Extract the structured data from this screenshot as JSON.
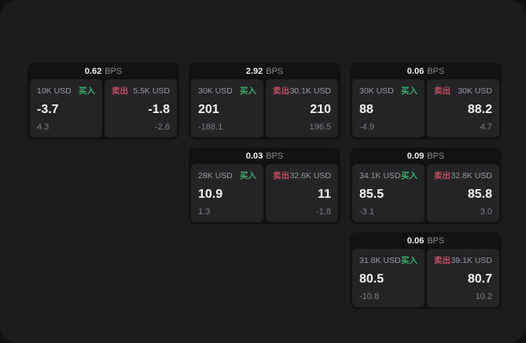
{
  "colors": {
    "buy_green": "#3aad6c",
    "sell_red": "#c24e61",
    "panel_bg": "#242427",
    "card_bg": "#121214",
    "window_bg": "#1c1c1e"
  },
  "labels": {
    "buy": "买入",
    "sell": "卖出",
    "bps_unit": "BPS"
  },
  "cards": [
    {
      "row": 1,
      "col": 1,
      "bps": "0.62",
      "buy": {
        "amount": "10K USD",
        "value": "-3.7",
        "sub": "4.3"
      },
      "sell": {
        "amount": "5.5K USD",
        "value": "-1.8",
        "sub": "-2.6"
      }
    },
    {
      "row": 1,
      "col": 2,
      "bps": "2.92",
      "buy": {
        "amount": "30K USD",
        "value": "201",
        "sub": "-188.1"
      },
      "sell": {
        "amount": "30.1K USD",
        "value": "210",
        "sub": "196.5"
      }
    },
    {
      "row": 1,
      "col": 3,
      "bps": "0.06",
      "buy": {
        "amount": "30K USD",
        "value": "88",
        "sub": "-4.9"
      },
      "sell": {
        "amount": "30K USD",
        "value": "88.2",
        "sub": "4.7"
      }
    },
    {
      "row": 2,
      "col": 2,
      "bps": "0.03",
      "buy": {
        "amount": "28K USD",
        "value": "10.9",
        "sub": "1.3"
      },
      "sell": {
        "amount": "32.6K USD",
        "value": "11",
        "sub": "-1.8"
      }
    },
    {
      "row": 2,
      "col": 3,
      "bps": "0.09",
      "buy": {
        "amount": "34.1K USD",
        "value": "85.5",
        "sub": "-3.1"
      },
      "sell": {
        "amount": "32.8K USD",
        "value": "85.8",
        "sub": "3.0"
      }
    },
    {
      "row": 3,
      "col": 3,
      "bps": "0.06",
      "buy": {
        "amount": "31.8K USD",
        "value": "80.5",
        "sub": "-10.8"
      },
      "sell": {
        "amount": "39.1K USD",
        "value": "80.7",
        "sub": "10.2"
      }
    }
  ]
}
